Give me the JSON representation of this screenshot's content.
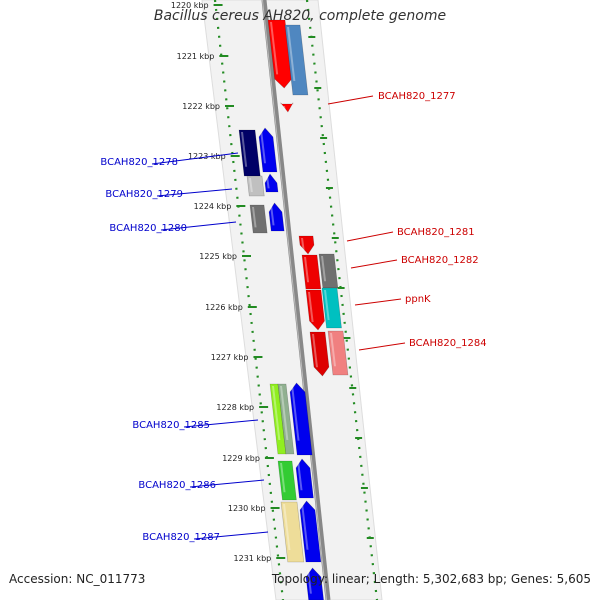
{
  "map": {
    "title": "Bacillus cereus AH820, complete genome",
    "accession": "Accession: NC_011773",
    "summary": "Topology: linear; Length: 5,302,683 bp; Genes: 5,605",
    "colors": {
      "left_label": "#0000cc",
      "right_label": "#cc0000",
      "ruler": "#228b22",
      "backbone": "#888888"
    }
  },
  "ticks": [
    {
      "label": "1220 kbp"
    },
    {
      "label": "1221 kbp"
    },
    {
      "label": "1222 kbp"
    },
    {
      "label": "1223 kbp"
    },
    {
      "label": "1224 kbp"
    },
    {
      "label": "1225 kbp"
    },
    {
      "label": "1226 kbp"
    },
    {
      "label": "1227 kbp"
    },
    {
      "label": "1228 kbp"
    },
    {
      "label": "1229 kbp"
    },
    {
      "label": "1230 kbp"
    },
    {
      "label": "1231 kbp"
    }
  ],
  "labels": [
    {
      "text": "BCAH820_1277",
      "side": "right"
    },
    {
      "text": "BCAH820_1278",
      "side": "left"
    },
    {
      "text": "BCAH820_1279",
      "side": "left"
    },
    {
      "text": "BCAH820_1280",
      "side": "left"
    },
    {
      "text": "BCAH820_1281",
      "side": "right"
    },
    {
      "text": "BCAH820_1282",
      "side": "right"
    },
    {
      "text": "ppnK",
      "side": "right"
    },
    {
      "text": "BCAH820_1284",
      "side": "right"
    },
    {
      "text": "BCAH820_1285",
      "side": "left"
    },
    {
      "text": "BCAH820_1286",
      "side": "left"
    },
    {
      "text": "BCAH820_1287",
      "side": "left"
    }
  ]
}
